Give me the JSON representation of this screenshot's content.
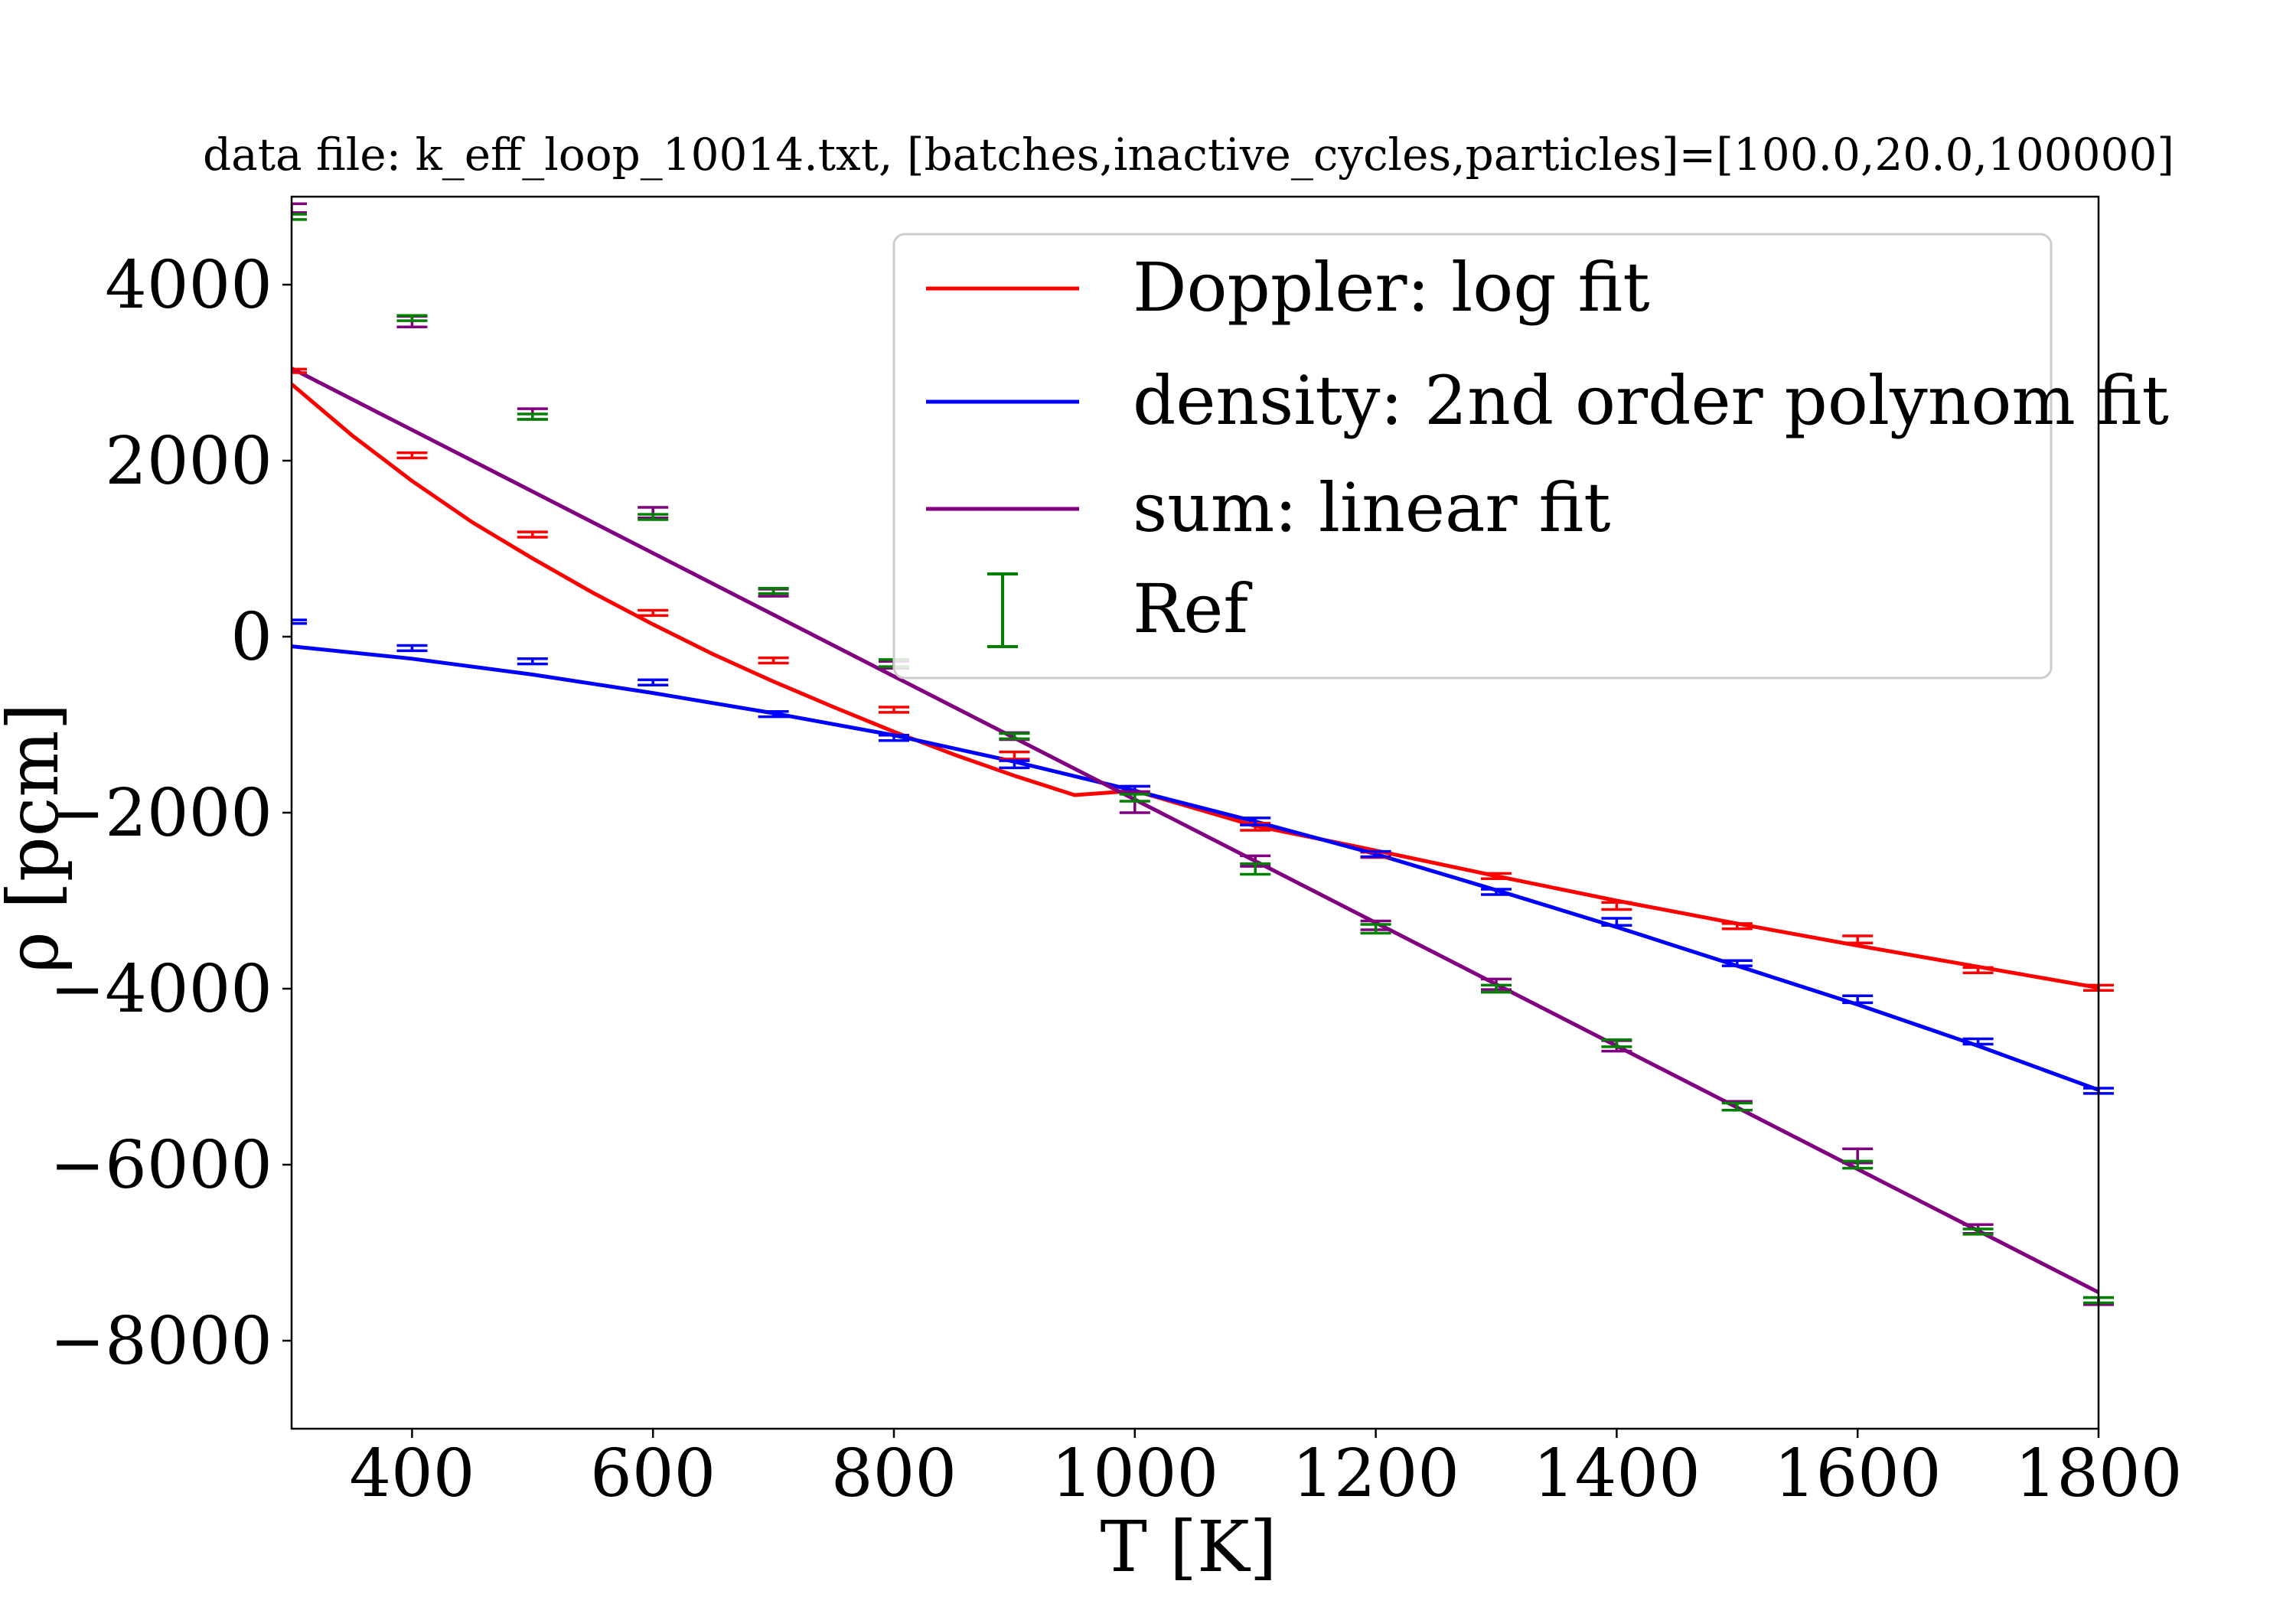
{
  "chart_data": {
    "type": "line",
    "title": "data file: k_eff_loop_10014.txt, [batches,inactive_cycles,particles]=[100.0,20.0,100000]",
    "xlabel": "T [K]",
    "ylabel": "ρ [pcm]",
    "xlim": [
      300,
      1800
    ],
    "ylim": [
      -9000,
      5000
    ],
    "xticks": [
      400,
      600,
      800,
      1000,
      1200,
      1400,
      1600,
      1800
    ],
    "xtick_labels": [
      "400",
      "600",
      "800",
      "1000",
      "1200",
      "1400",
      "1600",
      "1800"
    ],
    "yticks": [
      4000,
      2000,
      0,
      -2000,
      -4000,
      -6000,
      -8000
    ],
    "ytick_labels": [
      "4000",
      "2000",
      "0",
      "−2000",
      "−4000",
      "−6000",
      "−8000"
    ],
    "grid": false,
    "legend_position": "top-right",
    "x": [
      300,
      400,
      500,
      600,
      700,
      800,
      900,
      1000,
      1100,
      1200,
      1300,
      1400,
      1500,
      1600,
      1700,
      1800
    ],
    "fits": [
      {
        "name": "Doppler: log fit",
        "color": "#ff0000",
        "curve_x": [
          300,
          350,
          400,
          450,
          500,
          550,
          600,
          650,
          700,
          750,
          800,
          850,
          900,
          950,
          1000,
          1100,
          1200,
          1300,
          1400,
          1500,
          1600,
          1700,
          1800
        ],
        "curve_y": [
          2870,
          2290,
          1770,
          1300,
          890,
          500,
          140,
          -200,
          -510,
          -800,
          -1080,
          -1340,
          -1580,
          -1800,
          -1750,
          -2150,
          -2430,
          -2720,
          -3000,
          -3260,
          -3510,
          -3750,
          -3990
        ]
      },
      {
        "name": "density: 2nd order polynom fit",
        "color": "#0000ff",
        "curve_x": [
          300,
          400,
          500,
          600,
          700,
          800,
          900,
          1000,
          1100,
          1200,
          1300,
          1400,
          1500,
          1600,
          1700,
          1800
        ],
        "curve_y": [
          -110,
          -250,
          -430,
          -640,
          -870,
          -1120,
          -1420,
          -1750,
          -2100,
          -2470,
          -2880,
          -3300,
          -3740,
          -4180,
          -4650,
          -5150
        ]
      },
      {
        "name": "sum: linear fit",
        "color": "#800080",
        "curve_x": [
          300,
          1800
        ],
        "curve_y": [
          3050,
          -7450
        ]
      }
    ],
    "series": [
      {
        "name": "Doppler",
        "color": "#ff0000",
        "values": [
          3020,
          2060,
          1160,
          270,
          -270,
          -830,
          -1350,
          -1740,
          -2160,
          -2480,
          -2720,
          -3060,
          -3290,
          -3440,
          -3790,
          -3990
        ],
        "errors": [
          20,
          30,
          30,
          30,
          30,
          30,
          40,
          40,
          40,
          30,
          30,
          40,
          30,
          40,
          30,
          30
        ]
      },
      {
        "name": "density",
        "color": "#0000ff",
        "values": [
          170,
          -130,
          -280,
          -520,
          -880,
          -1150,
          -1450,
          -1740,
          -2100,
          -2470,
          -2900,
          -3240,
          -3710,
          -4120,
          -4600,
          -5160
        ],
        "errors": [
          20,
          30,
          30,
          30,
          30,
          30,
          40,
          40,
          40,
          30,
          30,
          40,
          30,
          40,
          30,
          30
        ]
      },
      {
        "name": "sum",
        "color": "#800080",
        "values": [
          4870,
          3580,
          2530,
          1410,
          500,
          -320,
          -1130,
          -1880,
          -2550,
          -3280,
          -3950,
          -4650,
          -5330,
          -5900,
          -6730,
          -7550
        ],
        "errors": [
          50,
          60,
          60,
          60,
          40,
          40,
          40,
          120,
          60,
          50,
          60,
          60,
          50,
          80,
          50,
          40
        ]
      },
      {
        "name": "Ref",
        "color": "#008000",
        "values": [
          4770,
          3620,
          2500,
          1360,
          520,
          -300,
          -1130,
          -1830,
          -2640,
          -3320,
          -4000,
          -4620,
          -5340,
          -6000,
          -6760,
          -7540
        ],
        "errors": [
          30,
          30,
          30,
          30,
          30,
          40,
          30,
          40,
          60,
          50,
          40,
          40,
          40,
          40,
          30,
          30
        ]
      }
    ]
  }
}
